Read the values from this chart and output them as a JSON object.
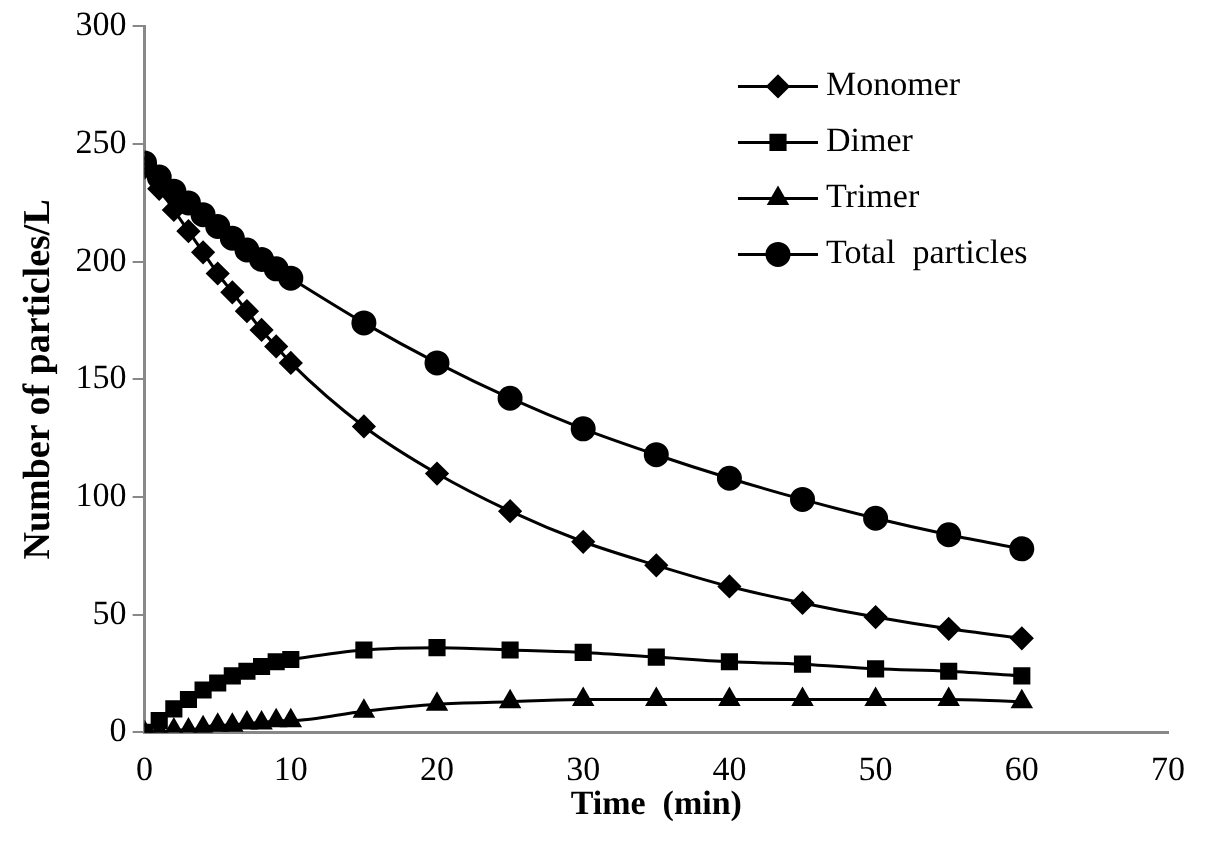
{
  "chart_data": {
    "type": "line",
    "xlabel": "Time  (min)",
    "ylabel": "Number of particles/L",
    "x": [
      0,
      1,
      2,
      3,
      4,
      5,
      6,
      7,
      8,
      9,
      10,
      15,
      20,
      25,
      30,
      35,
      40,
      45,
      50,
      55,
      60
    ],
    "xlim": [
      0,
      70
    ],
    "xticks": [
      0,
      10,
      20,
      30,
      40,
      50,
      60,
      70
    ],
    "ylim": [
      0,
      300
    ],
    "yticks": [
      0,
      50,
      100,
      150,
      200,
      250,
      300
    ],
    "grid": false,
    "legend": "top right",
    "line_style": "solid",
    "series": [
      {
        "name": "Monomer",
        "color": "#000000",
        "marker": "diamond",
        "values": [
          240,
          231,
          222,
          213,
          204,
          195,
          187,
          179,
          171,
          164,
          157,
          130,
          110,
          94,
          81,
          71,
          62,
          55,
          49,
          44,
          40
        ]
      },
      {
        "name": "Dimer",
        "color": "#000000",
        "marker": "square",
        "values": [
          0,
          5,
          10,
          14,
          18,
          21,
          24,
          26,
          28,
          30,
          31,
          35,
          36,
          35,
          34,
          32,
          30,
          29,
          27,
          26,
          24
        ]
      },
      {
        "name": "Trimer",
        "color": "#000000",
        "marker": "triangle",
        "values": [
          0,
          0,
          1,
          1,
          2,
          3,
          3,
          4,
          4,
          5,
          5,
          9,
          12,
          13,
          14,
          14,
          14,
          14,
          14,
          14,
          13
        ]
      },
      {
        "name": "Total  particles",
        "color": "#000000",
        "marker": "circle",
        "values": [
          242,
          236,
          230,
          225,
          220,
          215,
          210,
          205,
          201,
          197,
          193,
          174,
          157,
          142,
          129,
          118,
          108,
          99,
          91,
          84,
          78
        ]
      }
    ]
  }
}
